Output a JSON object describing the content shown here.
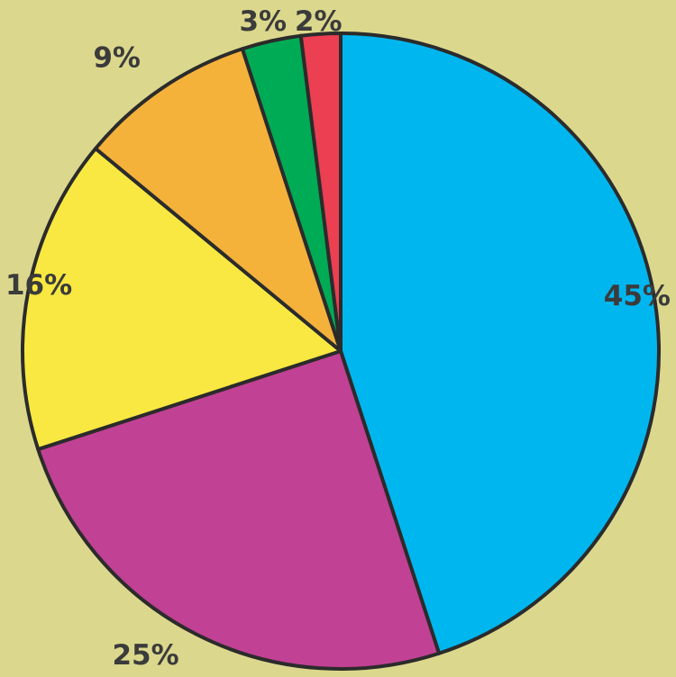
{
  "chart_data": {
    "type": "pie",
    "title": "",
    "start_angle_deg": 0,
    "direction": "clockwise",
    "slices": [
      {
        "value": 45,
        "label": "45%",
        "color": "#00b6ef"
      },
      {
        "value": 25,
        "label": "25%",
        "color": "#c14194"
      },
      {
        "value": 16,
        "label": "16%",
        "color": "#f9e841"
      },
      {
        "value": 9,
        "label": "9%",
        "color": "#f4b23b"
      },
      {
        "value": 3,
        "label": "3%",
        "color": "#00ab55"
      },
      {
        "value": 2,
        "label": "2%",
        "color": "#ec3f52"
      }
    ]
  }
}
